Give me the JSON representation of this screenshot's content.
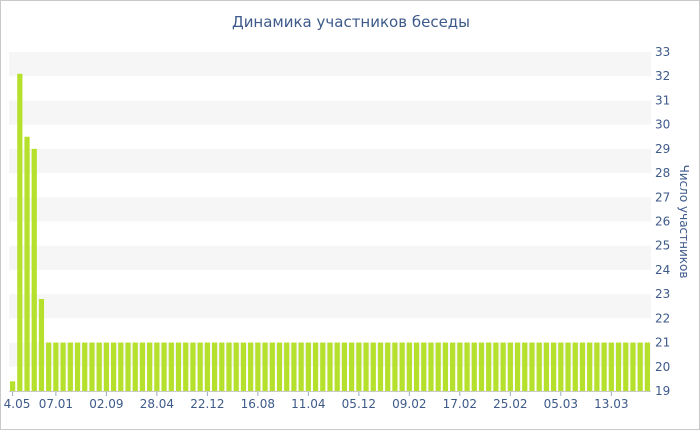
{
  "chart_data": {
    "type": "bar",
    "title": "Динамика участников беседы",
    "ylabel": "Число участников",
    "xlabel": "",
    "ylim": [
      19,
      33
    ],
    "yticks": [
      19,
      20,
      21,
      22,
      23,
      24,
      25,
      26,
      27,
      28,
      29,
      30,
      31,
      32,
      33
    ],
    "y_axis_side": "right",
    "grid": "alternating horizontal bands",
    "bar_color": "#b5e02b",
    "band_color": "#f6f6f6",
    "text_color": "#3d5a8a",
    "x_tick_labels": [
      {
        "label": "4.05",
        "index": 0
      },
      {
        "label": "07.01",
        "index": 6
      },
      {
        "label": "02.09",
        "index": 13
      },
      {
        "label": "28.04",
        "index": 20
      },
      {
        "label": "22.12",
        "index": 27
      },
      {
        "label": "16.08",
        "index": 34
      },
      {
        "label": "11.04",
        "index": 41
      },
      {
        "label": "05.12",
        "index": 48
      },
      {
        "label": "09.02",
        "index": 55
      },
      {
        "label": "17.02",
        "index": 62
      },
      {
        "label": "25.02",
        "index": 69
      },
      {
        "label": "05.03",
        "index": 76
      },
      {
        "label": "13.03",
        "index": 83
      }
    ],
    "values": [
      19.4,
      32.1,
      29.5,
      29.0,
      22.8,
      21,
      21,
      21,
      21,
      21,
      21,
      21,
      21,
      21,
      21,
      21,
      21,
      21,
      21,
      21,
      21,
      21,
      21,
      21,
      21,
      21,
      21,
      21,
      21,
      21,
      21,
      21,
      21,
      21,
      21,
      21,
      21,
      21,
      21,
      21,
      21,
      21,
      21,
      21,
      21,
      21,
      21,
      21,
      21,
      21,
      21,
      21,
      21,
      21,
      21,
      21,
      21,
      21,
      21,
      21,
      21,
      21,
      21,
      21,
      21,
      21,
      21,
      21,
      21,
      21,
      21,
      21,
      21,
      21,
      21,
      21,
      21,
      21,
      21,
      21,
      21,
      21,
      21,
      21,
      21,
      21,
      21,
      21,
      21
    ]
  }
}
